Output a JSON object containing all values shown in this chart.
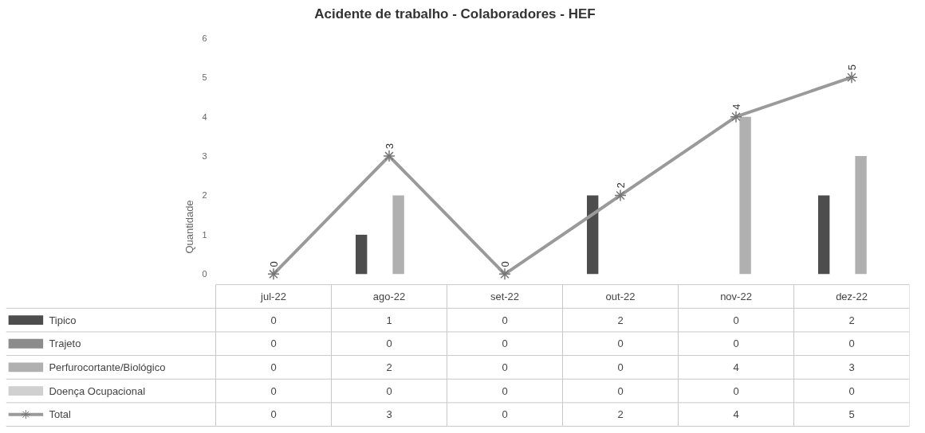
{
  "chart_data": {
    "type": "bar",
    "title": "Acidente de trabalho - Colaboradores - HEF",
    "ylabel": "Quantidade",
    "categories": [
      "jul-22",
      "ago-22",
      "set-22",
      "out-22",
      "nov-22",
      "dez-22"
    ],
    "ylim": [
      0,
      6
    ],
    "yticks": [
      0,
      1,
      2,
      3,
      4,
      5,
      6
    ],
    "grid": false,
    "legend": "bottom",
    "data_labels": true,
    "series": [
      {
        "name": "Tipico",
        "color": "#4d4d4d",
        "values": [
          0,
          1,
          0,
          2,
          0,
          2
        ]
      },
      {
        "name": "Trajeto",
        "color": "#8c8c8c",
        "values": [
          0,
          0,
          0,
          0,
          0,
          0
        ]
      },
      {
        "name": "Perfurocortante/Biológico",
        "color": "#b0b0b0",
        "values": [
          0,
          2,
          0,
          0,
          4,
          3
        ]
      },
      {
        "name": "Doença Ocupacional",
        "color": "#d0d0d0",
        "values": [
          0,
          0,
          0,
          0,
          0,
          0
        ]
      },
      {
        "name": "Total",
        "type": "line",
        "color": "#9a9a9a",
        "marker": "cross",
        "line_style": "solid",
        "values": [
          0,
          3,
          0,
          2,
          4,
          5
        ]
      }
    ],
    "annotations": [
      {
        "text": "0",
        "x": "jul-22",
        "y": 0
      },
      {
        "text": "3",
        "x": "ago-22",
        "y": 3
      },
      {
        "text": "0",
        "x": "set-22",
        "y": 0
      },
      {
        "text": "2",
        "x": "out-22",
        "y": 2
      },
      {
        "text": "4",
        "x": "nov-22",
        "y": 4
      },
      {
        "text": "5",
        "x": "dez-22",
        "y": 5
      }
    ]
  }
}
